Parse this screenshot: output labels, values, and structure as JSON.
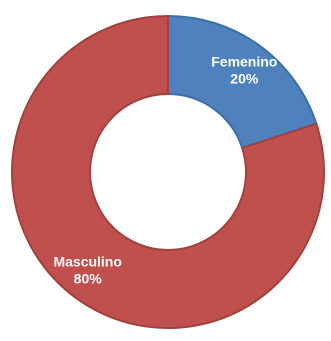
{
  "chart_data": {
    "type": "pie",
    "variant": "donut",
    "title": "",
    "slices": [
      {
        "label": "Femenino",
        "value": 20,
        "value_label": "20%",
        "color": "#4f81bd",
        "border": "#3c6ea8"
      },
      {
        "label": "Masculino",
        "value": 80,
        "value_label": "80%",
        "color": "#c0504d",
        "border": "#a0413e"
      }
    ],
    "legend": "none",
    "start_angle": "12 o'clock",
    "direction": "clockwise"
  }
}
